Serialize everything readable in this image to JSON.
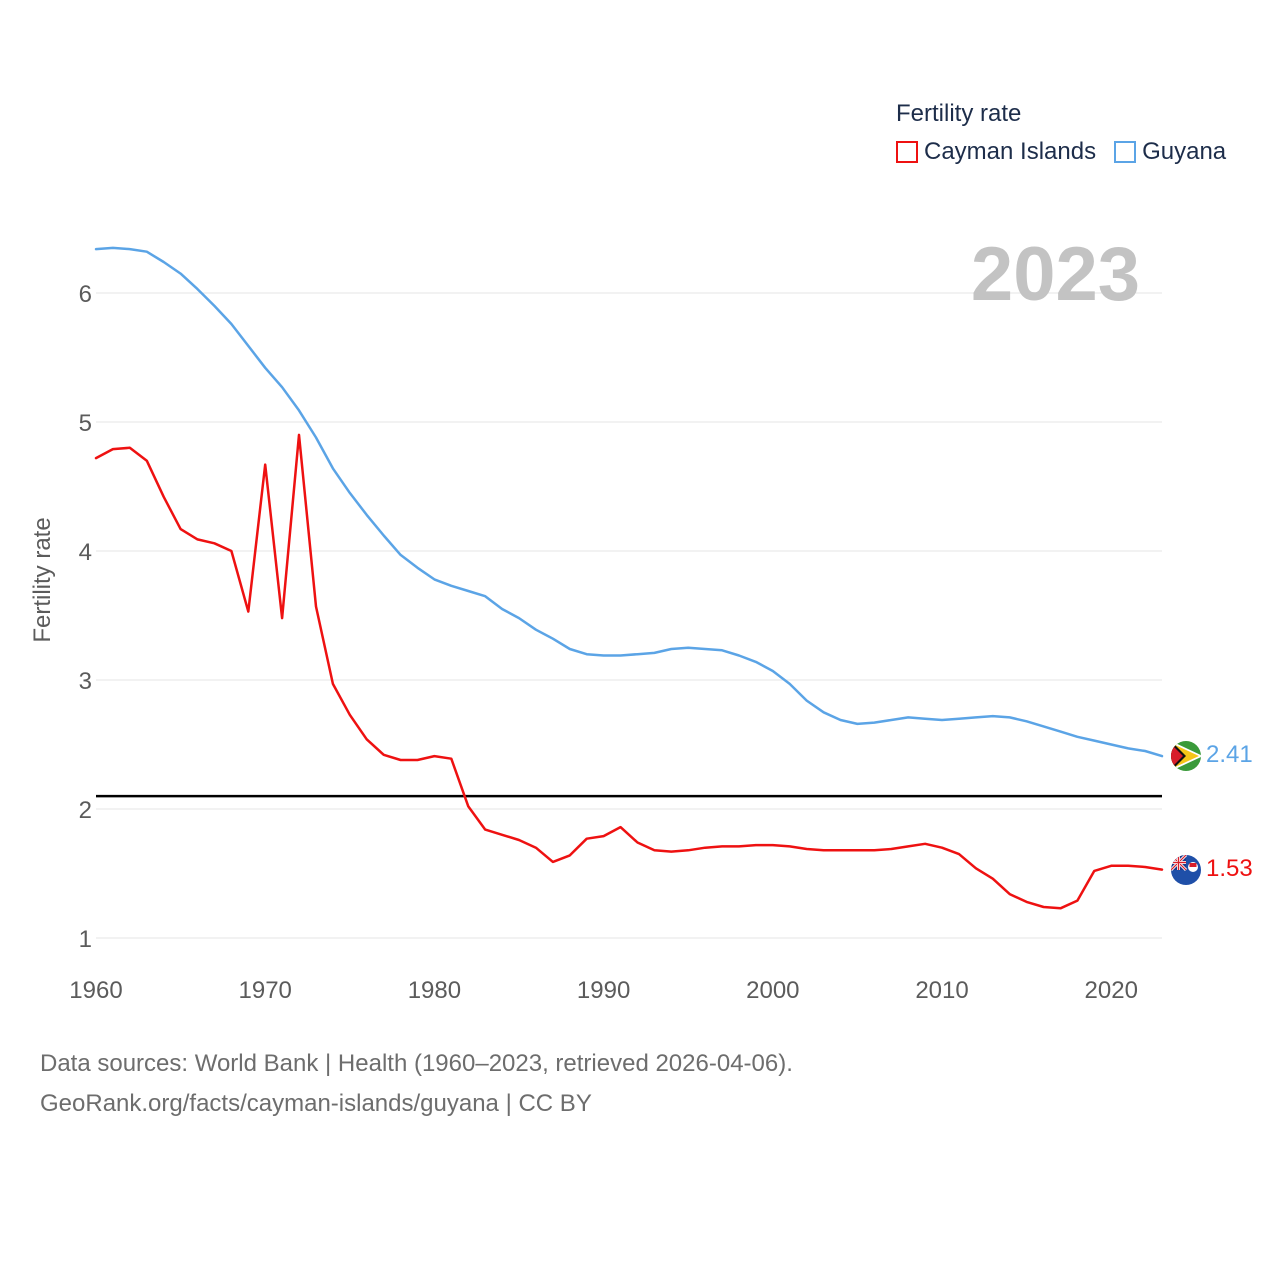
{
  "chart_data": {
    "type": "line",
    "title": "",
    "xlabel": "",
    "ylabel": "Fertility rate",
    "xlim": [
      1960,
      2023
    ],
    "ylim": [
      1,
      6.5
    ],
    "x_ticks": [
      1960,
      1970,
      1980,
      1990,
      2000,
      2010,
      2020
    ],
    "y_ticks": [
      1,
      2,
      3,
      4,
      5,
      6
    ],
    "legend_title": "Fertility rate",
    "legend_position": "top-right",
    "year_label": "2023",
    "reference_line": {
      "value": 2.1,
      "color": "#000000"
    },
    "series": [
      {
        "name": "Cayman Islands",
        "color": "#ee1111",
        "end_label": "1.53",
        "flag_icon": "cayman-islands-flag-icon",
        "x": [
          1960,
          1961,
          1962,
          1963,
          1964,
          1965,
          1966,
          1967,
          1968,
          1969,
          1970,
          1971,
          1972,
          1973,
          1974,
          1975,
          1976,
          1977,
          1978,
          1979,
          1980,
          1981,
          1982,
          1983,
          1984,
          1985,
          1986,
          1987,
          1988,
          1989,
          1990,
          1991,
          1992,
          1993,
          1994,
          1995,
          1996,
          1997,
          1998,
          1999,
          2000,
          2001,
          2002,
          2003,
          2004,
          2005,
          2006,
          2007,
          2008,
          2009,
          2010,
          2011,
          2012,
          2013,
          2014,
          2015,
          2016,
          2017,
          2018,
          2019,
          2020,
          2021,
          2022,
          2023
        ],
        "values": [
          4.72,
          4.79,
          4.8,
          4.7,
          4.42,
          4.17,
          4.09,
          4.06,
          4.0,
          3.53,
          4.67,
          3.48,
          4.9,
          3.57,
          2.97,
          2.73,
          2.54,
          2.42,
          2.38,
          2.38,
          2.41,
          2.39,
          2.02,
          1.84,
          1.8,
          1.76,
          1.7,
          1.59,
          1.64,
          1.77,
          1.79,
          1.86,
          1.74,
          1.68,
          1.67,
          1.68,
          1.7,
          1.71,
          1.71,
          1.72,
          1.72,
          1.71,
          1.69,
          1.68,
          1.68,
          1.68,
          1.68,
          1.69,
          1.71,
          1.73,
          1.7,
          1.65,
          1.54,
          1.46,
          1.34,
          1.28,
          1.24,
          1.23,
          1.29,
          1.52,
          1.56,
          1.56,
          1.55,
          1.53
        ]
      },
      {
        "name": "Guyana",
        "color": "#5ba4e6",
        "end_label": "2.41",
        "flag_icon": "guyana-flag-icon",
        "x": [
          1960,
          1961,
          1962,
          1963,
          1964,
          1965,
          1966,
          1967,
          1968,
          1969,
          1970,
          1971,
          1972,
          1973,
          1974,
          1975,
          1976,
          1977,
          1978,
          1979,
          1980,
          1981,
          1982,
          1983,
          1984,
          1985,
          1986,
          1987,
          1988,
          1989,
          1990,
          1991,
          1992,
          1993,
          1994,
          1995,
          1996,
          1997,
          1998,
          1999,
          2000,
          2001,
          2002,
          2003,
          2004,
          2005,
          2006,
          2007,
          2008,
          2009,
          2010,
          2011,
          2012,
          2013,
          2014,
          2015,
          2016,
          2017,
          2018,
          2019,
          2020,
          2021,
          2022,
          2023
        ],
        "values": [
          6.34,
          6.35,
          6.34,
          6.32,
          6.24,
          6.15,
          6.03,
          5.9,
          5.76,
          5.59,
          5.42,
          5.27,
          5.09,
          4.88,
          4.64,
          4.45,
          4.28,
          4.12,
          3.97,
          3.87,
          3.78,
          3.73,
          3.69,
          3.65,
          3.55,
          3.48,
          3.39,
          3.32,
          3.24,
          3.2,
          3.19,
          3.19,
          3.2,
          3.21,
          3.24,
          3.25,
          3.24,
          3.23,
          3.19,
          3.14,
          3.07,
          2.97,
          2.84,
          2.75,
          2.69,
          2.66,
          2.67,
          2.69,
          2.71,
          2.7,
          2.69,
          2.7,
          2.71,
          2.72,
          2.71,
          2.68,
          2.64,
          2.6,
          2.56,
          2.53,
          2.5,
          2.47,
          2.45,
          2.41
        ]
      }
    ]
  },
  "footer": {
    "sources": "Data sources: World Bank | Health (1960–2023, retrieved 2026-04-06).",
    "credit": "GeoRank.org/facts/cayman-islands/guyana | CC BY"
  }
}
